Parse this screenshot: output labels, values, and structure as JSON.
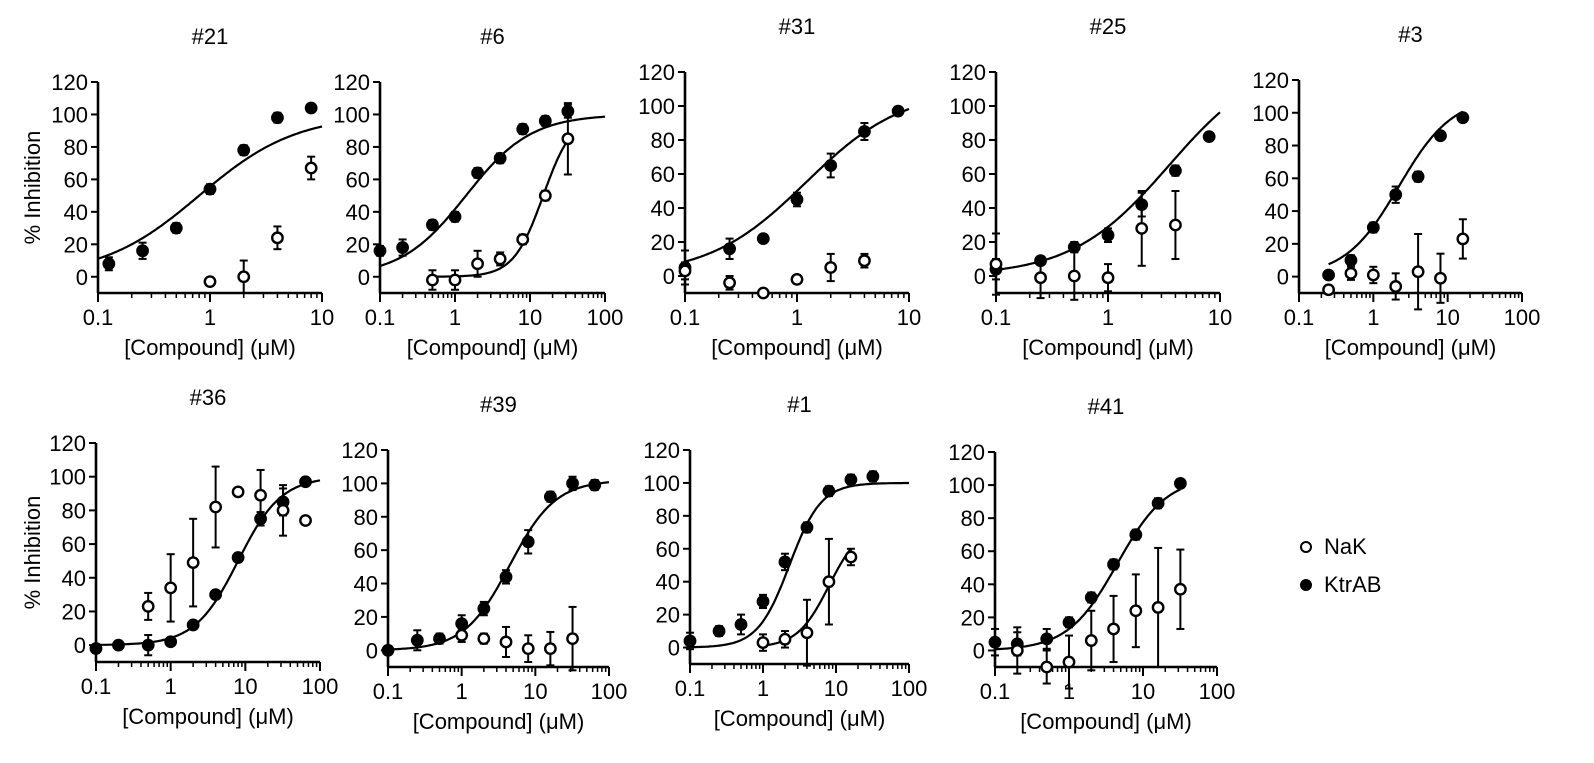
{
  "figure": {
    "legend": [
      {
        "name": "NaK",
        "marker": "open"
      },
      {
        "name": "KtrAB",
        "marker": "filled"
      }
    ]
  },
  "chart_data": [
    {
      "type": "scatter",
      "title": "#21",
      "xlabel": "[Compound] (μM)",
      "ylabel": "% Inhibition",
      "xscale": "log",
      "xlim": [
        0.1,
        10
      ],
      "ylim": [
        -10,
        120
      ],
      "xticks": [
        "0.1",
        "1",
        "10"
      ],
      "yticks": [
        "0",
        "20",
        "40",
        "60",
        "80",
        "100",
        "120"
      ],
      "series": [
        {
          "name": "KtrAB",
          "marker": "filled",
          "x": [
            0.125,
            0.25,
            0.5,
            1,
            2,
            4,
            8
          ],
          "y": [
            8,
            16,
            30,
            54,
            78,
            98,
            104
          ],
          "err": [
            4,
            5,
            3,
            3,
            3,
            3,
            2
          ],
          "fit": {
            "bottom": 0,
            "top": 100,
            "ic50": 0.8,
            "hill": 1.0
          }
        },
        {
          "name": "NaK",
          "marker": "open",
          "x": [
            1,
            2,
            4,
            8
          ],
          "y": [
            -3,
            0,
            24,
            67
          ],
          "err": [
            2,
            10,
            7,
            7
          ]
        }
      ]
    },
    {
      "type": "scatter",
      "title": "#6",
      "xlabel": "[Compound] (μM)",
      "ylabel": "",
      "xscale": "log",
      "xlim": [
        0.1,
        100
      ],
      "ylim": [
        -10,
        120
      ],
      "xticks": [
        "0.1",
        "1",
        "10",
        "100"
      ],
      "yticks": [
        "0",
        "20",
        "40",
        "60",
        "80",
        "100",
        "120"
      ],
      "series": [
        {
          "name": "KtrAB",
          "marker": "filled",
          "x": [
            0.1,
            0.2,
            0.5,
            1,
            2,
            4,
            8,
            16,
            32
          ],
          "y": [
            16,
            18,
            32,
            37,
            64,
            73,
            91,
            96,
            102
          ],
          "err": [
            3,
            5,
            3,
            3,
            3,
            3,
            3,
            3,
            4
          ],
          "fit": {
            "bottom": 0,
            "top": 100,
            "ic50": 1.4,
            "hill": 1.0
          }
        },
        {
          "name": "NaK",
          "marker": "open",
          "x": [
            0.5,
            1,
            2,
            4,
            8,
            16,
            32
          ],
          "y": [
            -2,
            -2,
            8,
            11,
            23,
            50,
            85
          ],
          "err": [
            6,
            6,
            8,
            4,
            3,
            3,
            22
          ],
          "fit": {
            "bottom": 0,
            "top": 100,
            "ic50": 15,
            "hill": 2.2,
            "xmin": 0.5,
            "xmax": 32
          }
        }
      ]
    },
    {
      "type": "scatter",
      "title": "#31",
      "xlabel": "[Compound] (μM)",
      "ylabel": "",
      "xscale": "log",
      "xlim": [
        0.1,
        10
      ],
      "ylim": [
        -10,
        120
      ],
      "xticks": [
        "0.1",
        "1",
        "10"
      ],
      "yticks": [
        "0",
        "20",
        "40",
        "60",
        "80",
        "100",
        "120"
      ],
      "series": [
        {
          "name": "KtrAB",
          "marker": "filled",
          "x": [
            0.1,
            0.25,
            0.5,
            1,
            2,
            4,
            8
          ],
          "y": [
            5,
            16,
            22,
            45,
            65,
            85,
            97
          ],
          "err": [
            10,
            6,
            2,
            4,
            7,
            5,
            2
          ],
          "fit": {
            "bottom": 0,
            "top": 110,
            "ic50": 1.2,
            "hill": 1.0
          }
        },
        {
          "name": "NaK",
          "marker": "open",
          "x": [
            0.1,
            0.25,
            0.5,
            1,
            2,
            4
          ],
          "y": [
            3,
            -4,
            -10,
            -2,
            5,
            9
          ],
          "err": [
            5,
            4,
            2,
            2,
            8,
            4
          ]
        }
      ]
    },
    {
      "type": "scatter",
      "title": "#25",
      "xlabel": "[Compound] (μM)",
      "ylabel": "",
      "xscale": "log",
      "xlim": [
        0.1,
        10
      ],
      "ylim": [
        -10,
        120
      ],
      "xticks": [
        "0.1",
        "1",
        "10"
      ],
      "yticks": [
        "0",
        "20",
        "40",
        "60",
        "80",
        "100",
        "120"
      ],
      "series": [
        {
          "name": "KtrAB",
          "marker": "filled",
          "x": [
            0.1,
            0.25,
            0.5,
            1,
            2,
            4,
            8
          ],
          "y": [
            4,
            9,
            17,
            24,
            42,
            62,
            82
          ],
          "err": [
            6,
            2,
            3,
            4,
            7,
            3,
            2
          ],
          "fit": {
            "bottom": 0,
            "top": 130,
            "ic50": 3.5,
            "hill": 1.0
          }
        },
        {
          "name": "NaK",
          "marker": "open",
          "x": [
            0.1,
            0.25,
            0.5,
            1,
            2,
            4
          ],
          "y": [
            7,
            -1,
            0,
            -1,
            28,
            30
          ],
          "err": [
            18,
            12,
            14,
            8,
            22,
            20
          ]
        }
      ]
    },
    {
      "type": "scatter",
      "title": "#3",
      "xlabel": "[Compound] (μM)",
      "ylabel": "",
      "xscale": "log",
      "xlim": [
        0.1,
        100
      ],
      "ylim": [
        -10,
        120
      ],
      "xticks": [
        "0.1",
        "1",
        "10",
        "100"
      ],
      "yticks": [
        "0",
        "20",
        "40",
        "60",
        "80",
        "100",
        "120"
      ],
      "series": [
        {
          "name": "KtrAB",
          "marker": "filled",
          "x": [
            0.25,
            0.5,
            1,
            2,
            4,
            8,
            16
          ],
          "y": [
            1,
            10,
            30,
            50,
            61,
            86,
            97
          ],
          "err": [
            2,
            3,
            3,
            5,
            3,
            2,
            2
          ],
          "fit": {
            "bottom": 0,
            "top": 110,
            "ic50": 2.2,
            "hill": 1.2,
            "xmin": 0.25,
            "xmax": 16
          }
        },
        {
          "name": "NaK",
          "marker": "open",
          "x": [
            0.25,
            0.5,
            1,
            2,
            4,
            8,
            16
          ],
          "y": [
            -8,
            2,
            1,
            -6,
            3,
            -1,
            23
          ],
          "err": [
            2,
            4,
            5,
            8,
            23,
            15,
            12
          ]
        }
      ]
    },
    {
      "type": "scatter",
      "title": "#36",
      "xlabel": "[Compound] (μM)",
      "ylabel": "% Inhibition",
      "xscale": "log",
      "xlim": [
        0.1,
        100
      ],
      "ylim": [
        -10,
        120
      ],
      "xticks": [
        "0.1",
        "1",
        "10",
        "100"
      ],
      "yticks": [
        "0",
        "20",
        "40",
        "60",
        "80",
        "100",
        "120"
      ],
      "series": [
        {
          "name": "KtrAB",
          "marker": "filled",
          "x": [
            0.1,
            0.2,
            0.5,
            1,
            2,
            4,
            8,
            16,
            32,
            64
          ],
          "y": [
            -2,
            0,
            0,
            2,
            12,
            30,
            52,
            75,
            85,
            97
          ],
          "err": [
            2,
            2,
            6,
            2,
            2,
            2,
            2,
            4,
            8,
            2
          ],
          "fit": {
            "bottom": 0,
            "top": 100,
            "ic50": 8,
            "hill": 1.5
          }
        },
        {
          "name": "NaK",
          "marker": "open",
          "x": [
            0.5,
            1,
            2,
            4,
            8,
            16,
            32,
            64
          ],
          "y": [
            23,
            34,
            49,
            82,
            91,
            89,
            80,
            74
          ],
          "err": [
            8,
            20,
            26,
            24,
            2,
            15,
            15,
            2
          ]
        }
      ]
    },
    {
      "type": "scatter",
      "title": "#39",
      "xlabel": "[Compound] (μM)",
      "ylabel": "",
      "xscale": "log",
      "xlim": [
        0.1,
        100
      ],
      "ylim": [
        -10,
        120
      ],
      "xticks": [
        "0.1",
        "1",
        "10",
        "100"
      ],
      "yticks": [
        "0",
        "20",
        "40",
        "60",
        "80",
        "100",
        "120"
      ],
      "series": [
        {
          "name": "KtrAB",
          "marker": "filled",
          "x": [
            0.1,
            0.25,
            0.5,
            1,
            2,
            4,
            8,
            16,
            32,
            64
          ],
          "y": [
            0,
            6,
            7,
            16,
            25,
            44,
            65,
            92,
            100,
            99
          ],
          "err": [
            2,
            6,
            3,
            5,
            4,
            4,
            7,
            3,
            4,
            3
          ],
          "fit": {
            "bottom": 0,
            "top": 102,
            "ic50": 4.5,
            "hill": 1.4
          }
        },
        {
          "name": "NaK",
          "marker": "open",
          "x": [
            1,
            2,
            4,
            8,
            16,
            32
          ],
          "y": [
            9,
            7,
            5,
            1,
            1,
            7
          ],
          "err": [
            4,
            3,
            9,
            8,
            10,
            19
          ]
        }
      ]
    },
    {
      "type": "scatter",
      "title": "#1",
      "xlabel": "[Compound] (μM)",
      "ylabel": "",
      "xscale": "log",
      "xlim": [
        0.1,
        100
      ],
      "ylim": [
        -10,
        120
      ],
      "xticks": [
        "0.1",
        "1",
        "10",
        "100"
      ],
      "yticks": [
        "0",
        "20",
        "40",
        "60",
        "80",
        "100",
        "120"
      ],
      "series": [
        {
          "name": "KtrAB",
          "marker": "filled",
          "x": [
            0.1,
            0.25,
            0.5,
            1,
            2,
            4,
            8,
            16,
            32
          ],
          "y": [
            4,
            10,
            14,
            28,
            52,
            73,
            95,
            102,
            104
          ],
          "err": [
            5,
            3,
            6,
            4,
            5,
            3,
            3,
            3,
            3
          ],
          "fit": {
            "bottom": 0,
            "top": 100,
            "ic50": 2.3,
            "hill": 2.0
          }
        },
        {
          "name": "NaK",
          "marker": "open",
          "x": [
            1,
            2,
            4,
            8,
            16
          ],
          "y": [
            3,
            5,
            9,
            40,
            55
          ],
          "err": [
            5,
            5,
            20,
            26,
            5
          ],
          "fit": {
            "bottom": 0,
            "top": 75,
            "ic50": 8,
            "hill": 2.0,
            "xmin": 1,
            "xmax": 16
          }
        }
      ]
    },
    {
      "type": "scatter",
      "title": "#41",
      "xlabel": "[Compound] (μM)",
      "ylabel": "",
      "xscale": "log",
      "xlim": [
        0.1,
        100
      ],
      "ylim": [
        -10,
        120
      ],
      "xticks": [
        "0.1",
        "1",
        "10",
        "100"
      ],
      "yticks": [
        "0",
        "20",
        "40",
        "60",
        "80",
        "100",
        "120"
      ],
      "series": [
        {
          "name": "KtrAB",
          "marker": "filled",
          "x": [
            0.1,
            0.2,
            0.5,
            1,
            2,
            4,
            8,
            16,
            32
          ],
          "y": [
            5,
            4,
            7,
            17,
            32,
            52,
            70,
            89,
            101
          ],
          "err": [
            8,
            7,
            6,
            3,
            3,
            3,
            3,
            3,
            2
          ],
          "fit": {
            "bottom": 0,
            "top": 105,
            "ic50": 4.5,
            "hill": 1.3,
            "xmax": 32
          }
        },
        {
          "name": "NaK",
          "marker": "open",
          "x": [
            0.2,
            0.5,
            1,
            2,
            4,
            8,
            16,
            32
          ],
          "y": [
            0,
            -10,
            -7,
            6,
            13,
            24,
            26,
            37
          ],
          "err": [
            14,
            10,
            16,
            18,
            20,
            22,
            36,
            24
          ]
        }
      ]
    }
  ]
}
